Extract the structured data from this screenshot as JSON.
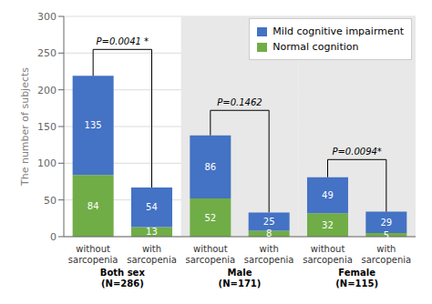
{
  "chart_data": {
    "type": "bar",
    "stacked": true,
    "data_labels": true,
    "grid": true,
    "legend": "upper right",
    "categories": [
      "without\nsarcopenia",
      "with\nsarcopenia",
      "without\nsarcopenia",
      "with\nsarcopenia",
      "without\nsarcopenia",
      "with\nsarcopenia"
    ],
    "series": [
      {
        "name": "Normal cognition",
        "color": "#70AD47",
        "values": [
          84,
          13,
          52,
          8,
          32,
          5
        ]
      },
      {
        "name": "Mild cognitive impairment",
        "color": "#4472C4",
        "values": [
          135,
          54,
          86,
          25,
          49,
          29
        ]
      }
    ],
    "ylabel": "The number of subjects",
    "ylim": [
      0,
      300
    ],
    "yticks": [
      0,
      50,
      100,
      150,
      200,
      250,
      300
    ],
    "groups": [
      {
        "label": "Both sex\n(N=286)",
        "categories": [
          0,
          1
        ]
      },
      {
        "label": "Male\n(N=171)",
        "categories": [
          2,
          3
        ],
        "color": "#E8E8E8"
      },
      {
        "label": "Female\n(N=115)",
        "categories": [
          4,
          5
        ],
        "color": "#E8E8E8"
      }
    ],
    "annotations": [
      {
        "text": "P=0.0041 *",
        "from": 0,
        "to": 1,
        "y": 255,
        "y_from": 219,
        "y_to": 67
      },
      {
        "text": "P=0.1462",
        "from": 2,
        "to": 3,
        "y": 172,
        "y_from": 138,
        "y_to": 33
      },
      {
        "text": "P=0.0094*",
        "from": 4,
        "to": 5,
        "y": 105,
        "y_from": 81,
        "y_to": 34
      }
    ]
  }
}
